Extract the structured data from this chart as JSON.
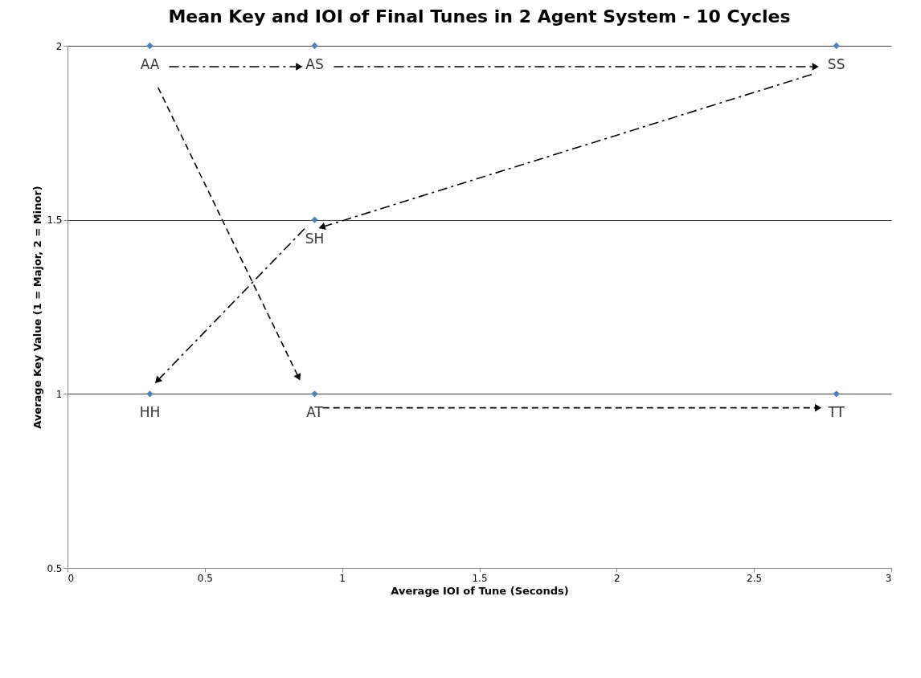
{
  "chart_data": {
    "type": "scatter",
    "title": "Mean Key and IOI of Final Tunes in 2 Agent System - 10 Cycles",
    "xlabel": "Average IOI of Tune (Seconds)",
    "ylabel": "Average Key Value (1 = Major, 2 = Minor)",
    "x": [
      0.3,
      0.9,
      2.8,
      0.9,
      0.3,
      0.9,
      2.8
    ],
    "series": [
      {
        "color": "#4f81bd",
        "values": [
          2,
          2,
          2,
          1.5,
          1,
          1,
          1
        ],
        "marker": "diamond"
      },
      {
        "type": "line",
        "color": "#000000",
        "x": [
          0.37,
          0.84
        ],
        "values": [
          1.94,
          1.94
        ],
        "line_style": "dashdot"
      },
      {
        "type": "line",
        "color": "#000000",
        "x": [
          0.97,
          2.72
        ],
        "values": [
          1.94,
          1.94
        ],
        "line_style": "dashdot"
      },
      {
        "type": "line",
        "color": "#000000",
        "x": [
          2.72,
          0.93
        ],
        "values": [
          1.92,
          1.48
        ],
        "line_style": "dashdot"
      },
      {
        "type": "line",
        "color": "#000000",
        "x": [
          0.87,
          0.33
        ],
        "values": [
          1.48,
          1.04
        ],
        "line_style": "dashdot"
      },
      {
        "type": "line",
        "color": "#000000",
        "x": [
          0.33,
          0.84
        ],
        "values": [
          1.88,
          1.05
        ],
        "line_style": "dashed"
      },
      {
        "type": "line",
        "color": "#000000",
        "x": [
          0.93,
          2.73
        ],
        "values": [
          0.96,
          0.96
        ],
        "line_style": "dashed"
      }
    ],
    "annotations": [
      {
        "text": "AA",
        "x": 0.3,
        "y": 2
      },
      {
        "text": "AS",
        "x": 0.9,
        "y": 2
      },
      {
        "text": "SS",
        "x": 2.8,
        "y": 2
      },
      {
        "text": "SH",
        "x": 0.9,
        "y": 1.5
      },
      {
        "text": "HH",
        "x": 0.3,
        "y": 1
      },
      {
        "text": "AT",
        "x": 0.9,
        "y": 1
      },
      {
        "text": "TT",
        "x": 2.8,
        "y": 1
      }
    ],
    "xlim": [
      0,
      3
    ],
    "xticks": [
      0,
      0.5,
      1,
      1.5,
      2,
      2.5,
      3
    ],
    "ylim": [
      0.5,
      2
    ],
    "yticks": [
      0.5,
      1,
      1.5,
      2
    ],
    "grid": "y"
  }
}
